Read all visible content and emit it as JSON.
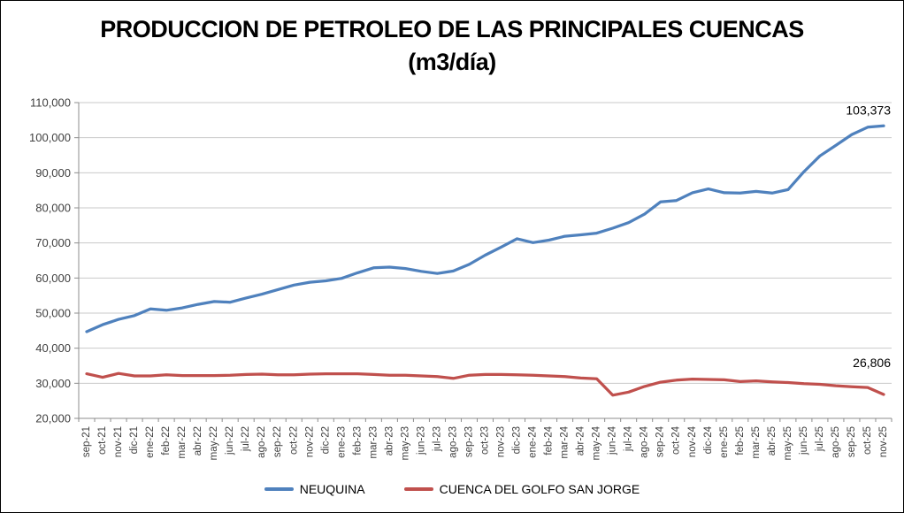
{
  "title": {
    "line1": "PRODUCCION DE PETROLEO DE LAS PRINCIPALES CUENCAS",
    "line2": "(m3/día)"
  },
  "chart_data": {
    "type": "line",
    "title": "PRODUCCION DE PETROLEO DE LAS PRINCIPALES CUENCAS (m3/día)",
    "xlabel": "",
    "ylabel": "",
    "ylim": [
      20000,
      110000
    ],
    "ytick_step": 10000,
    "grid": true,
    "legend_position": "bottom",
    "categories": [
      "sep-21",
      "oct-21",
      "nov-21",
      "dic-21",
      "ene-22",
      "feb-22",
      "mar-22",
      "abr-22",
      "may-22",
      "jun-22",
      "jul-22",
      "ago-22",
      "sep-22",
      "oct-22",
      "nov-22",
      "dic-22",
      "ene-23",
      "feb-23",
      "mar-23",
      "abr-23",
      "may-23",
      "jun-23",
      "jul-23",
      "ago-23",
      "sep-23",
      "oct-23",
      "nov-23",
      "dic-23",
      "ene-24",
      "feb-24",
      "mar-24",
      "abr-24",
      "may-24",
      "jun-24",
      "jul-24",
      "ago-24",
      "sep-24",
      "oct-24",
      "nov-24",
      "dic-24",
      "ene-25",
      "feb-25",
      "mar-25",
      "abr-25",
      "may-25",
      "jun-25",
      "jul-25",
      "ago-25",
      "sep-25",
      "oct-25",
      "nov-25"
    ],
    "series": [
      {
        "name": "NEUQUINA",
        "color": "#4F81BD",
        "end_label": "103,373",
        "values": [
          44700,
          46700,
          48200,
          49300,
          51200,
          50800,
          51500,
          52500,
          53300,
          53100,
          54300,
          55400,
          56700,
          58000,
          58800,
          59200,
          59900,
          61500,
          62900,
          63100,
          62700,
          61900,
          61300,
          62000,
          63900,
          66500,
          68800,
          71200,
          70100,
          70800,
          71900,
          72300,
          72800,
          74200,
          75800,
          78200,
          81700,
          82100,
          84300,
          85400,
          84300,
          84200,
          84700,
          84200,
          85200,
          90300,
          94800,
          97800,
          100900,
          103000,
          103373
        ]
      },
      {
        "name": "CUENCA DEL GOLFO SAN JORGE",
        "color": "#C0504D",
        "end_label": "26,806",
        "values": [
          32700,
          31700,
          32800,
          32100,
          32100,
          32400,
          32200,
          32200,
          32200,
          32300,
          32500,
          32600,
          32400,
          32400,
          32600,
          32700,
          32700,
          32700,
          32500,
          32300,
          32300,
          32100,
          31900,
          31400,
          32300,
          32500,
          32500,
          32400,
          32300,
          32100,
          31900,
          31500,
          31300,
          26600,
          27500,
          29100,
          30300,
          30900,
          31200,
          31100,
          31000,
          30500,
          30700,
          30400,
          30200,
          29900,
          29700,
          29300,
          29000,
          28800,
          26806
        ]
      }
    ],
    "colors": {
      "gridline": "#C9C9C9",
      "axis": "#8C8C8C",
      "tick_text": "#404040",
      "data_label": "#000000"
    }
  }
}
